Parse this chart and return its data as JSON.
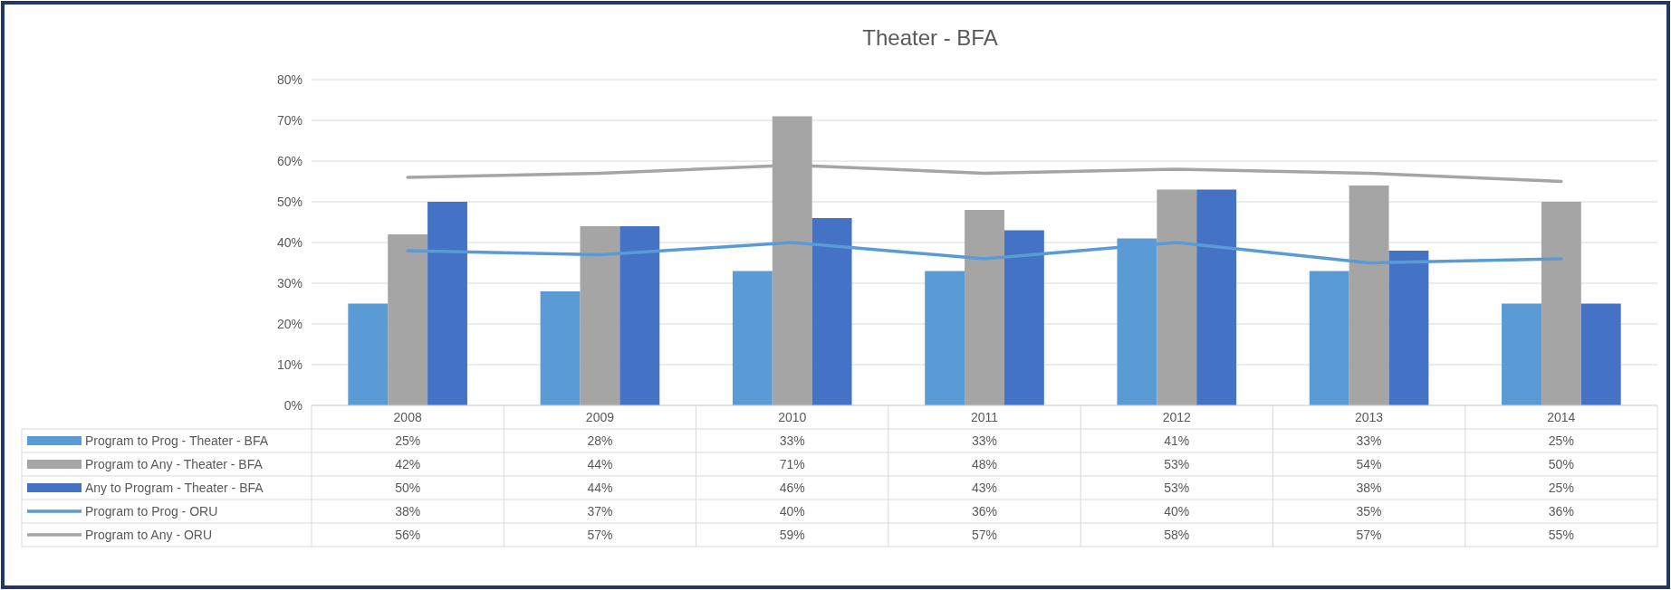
{
  "chart_data": {
    "type": "bar",
    "title": "Theater - BFA",
    "categories": [
      "2008",
      "2009",
      "2010",
      "2011",
      "2012",
      "2013",
      "2014"
    ],
    "ylim": [
      0,
      80
    ],
    "yticks": [
      {
        "value": 0,
        "label": "0%"
      },
      {
        "value": 10,
        "label": "10%"
      },
      {
        "value": 20,
        "label": "20%"
      },
      {
        "value": 30,
        "label": "30%"
      },
      {
        "value": 40,
        "label": "40%"
      },
      {
        "value": 50,
        "label": "50%"
      },
      {
        "value": 60,
        "label": "60%"
      },
      {
        "value": 70,
        "label": "70%"
      },
      {
        "value": 80,
        "label": "80%"
      }
    ],
    "grid": "y",
    "legend": "bottom",
    "marker": "none",
    "line_style": "solid",
    "series": [
      {
        "name": "Program to Prog - Theater - BFA",
        "color": "#5b9bd5",
        "values": [
          25,
          28,
          33,
          33,
          41,
          33,
          25
        ],
        "value_labels": [
          "25%",
          "28%",
          "33%",
          "33%",
          "41%",
          "33%",
          "25%"
        ]
      },
      {
        "name": "Program to Any - Theater - BFA",
        "color": "#a5a5a5",
        "values": [
          42,
          44,
          71,
          48,
          53,
          54,
          50
        ],
        "value_labels": [
          "42%",
          "44%",
          "71%",
          "48%",
          "53%",
          "54%",
          "50%"
        ]
      },
      {
        "name": "Any to Program - Theater - BFA",
        "color": "#4472c4",
        "values": [
          50,
          44,
          46,
          43,
          53,
          38,
          25
        ],
        "value_labels": [
          "50%",
          "44%",
          "46%",
          "43%",
          "53%",
          "38%",
          "25%"
        ]
      },
      {
        "name": "Program to Prog - ORU",
        "type": "line",
        "color": "#5b9bd5",
        "values": [
          38,
          37,
          40,
          36,
          40,
          35,
          36
        ],
        "value_labels": [
          "38%",
          "37%",
          "40%",
          "36%",
          "40%",
          "35%",
          "36%"
        ]
      },
      {
        "name": "Program to Any - ORU",
        "type": "line",
        "color": "#a5a5a5",
        "values": [
          56,
          57,
          59,
          57,
          58,
          57,
          55
        ],
        "value_labels": [
          "56%",
          "57%",
          "59%",
          "57%",
          "58%",
          "57%",
          "55%"
        ]
      }
    ]
  }
}
